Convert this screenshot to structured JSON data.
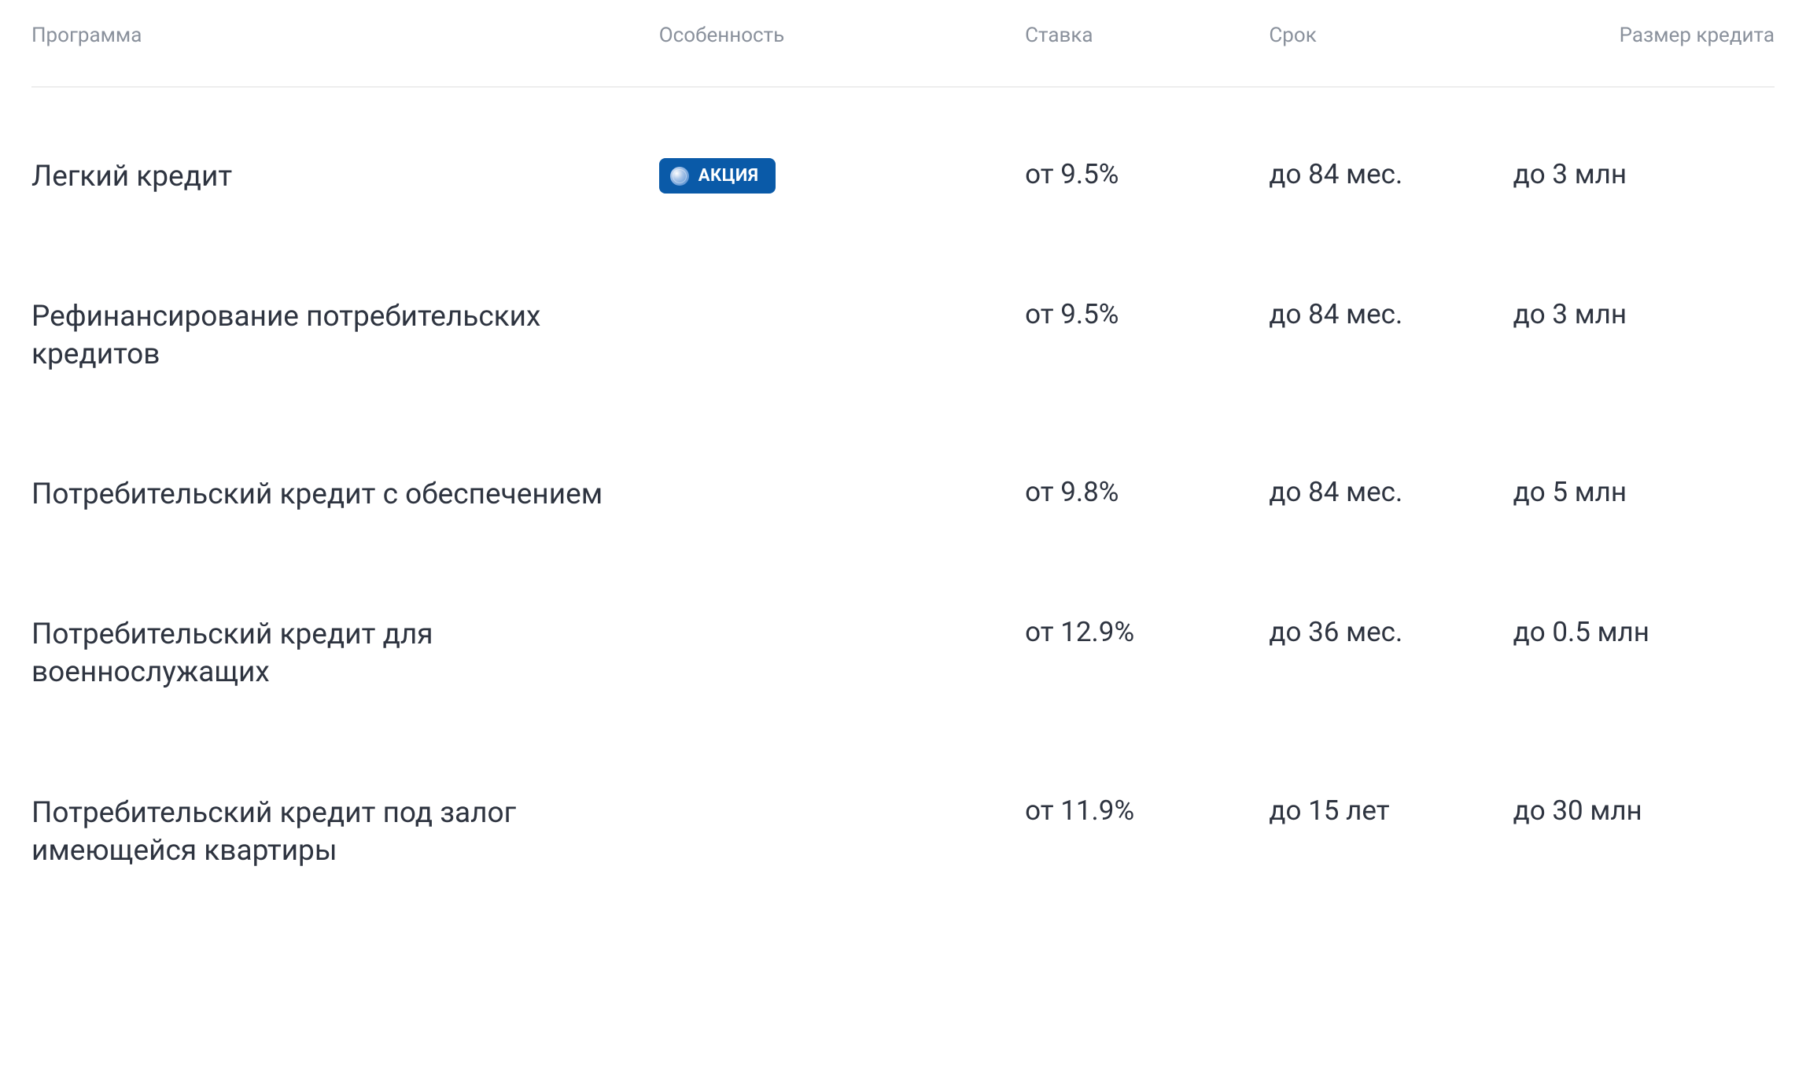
{
  "table": {
    "type": "table",
    "header_color": "#8a919c",
    "header_fontsize": 26,
    "cell_color": "#2e3440",
    "program_fontsize": 37,
    "cell_fontsize": 35,
    "border_color": "#e0e0e0",
    "background_color": "#ffffff",
    "badge_bg_color": "#0a5aa8",
    "badge_text_color": "#ffffff",
    "badge_fontsize": 22,
    "columns": {
      "program": "Программа",
      "feature": "Особенность",
      "rate": "Ставка",
      "term": "Срок",
      "size": "Размер кредита"
    },
    "column_widths": {
      "program": "36%",
      "feature": "21%",
      "rate": "14%",
      "term": "14%",
      "size": "15%"
    },
    "rows": [
      {
        "program": "Легкий кредит",
        "feature_badge": "АКЦИЯ",
        "rate": "от 9.5%",
        "term": "до 84 мес.",
        "size": "до 3 млн"
      },
      {
        "program": "Рефинансирование потребительских кредитов",
        "feature_badge": "",
        "rate": "от 9.5%",
        "term": "до 84 мес.",
        "size": "до 3 млн"
      },
      {
        "program": "Потребительский кредит с обеспечением",
        "feature_badge": "",
        "rate": "от 9.8%",
        "term": "до 84 мес.",
        "size": "до 5 млн"
      },
      {
        "program": "Потребительский кредит для военнослужащих",
        "feature_badge": "",
        "rate": "от 12.9%",
        "term": "до 36 мес.",
        "size": "до 0.5 млн"
      },
      {
        "program": "Потребительский кредит под залог имеющейся квартиры",
        "feature_badge": "",
        "rate": "от 11.9%",
        "term": "до 15 лет",
        "size": "до 30 млн"
      }
    ]
  }
}
